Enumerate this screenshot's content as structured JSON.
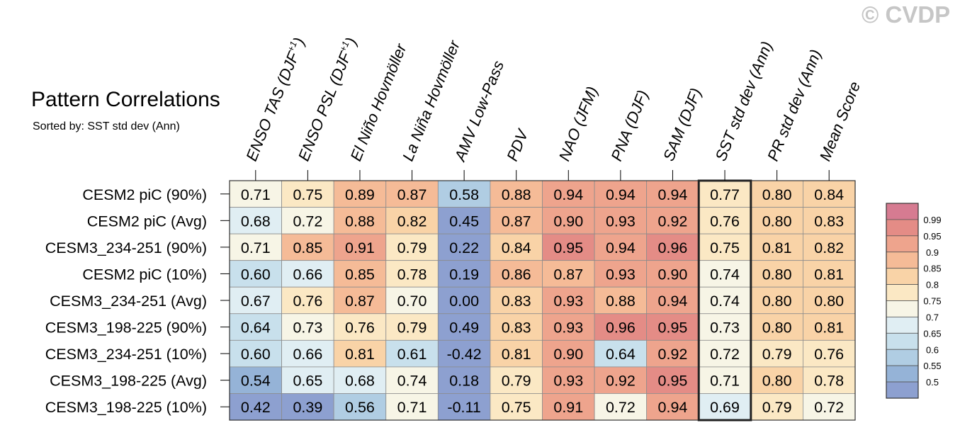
{
  "title": "Pattern Correlations",
  "subtitle": "Sorted by: SST std dev (Ann)",
  "watermark": "© CVDP",
  "chart_data": {
    "type": "heatmap",
    "title": "Pattern Correlations",
    "subtitle": "Sorted by: SST std dev (Ann)",
    "columns": [
      "ENSO TAS (DJF+1)",
      "ENSO PSL (DJF+1)",
      "El Niño Hovmöller",
      "La Niña Hovmöller",
      "AMV Low-Pass",
      "PDV",
      "NAO (JFM)",
      "PNA (DJF)",
      "SAM (DJF)",
      "SST std dev (Ann)",
      "PR std dev (Ann)",
      "Mean Score"
    ],
    "column_label_parts": [
      {
        "text": "ENSO TAS (DJF",
        "sup": "+1",
        "after": ")"
      },
      {
        "text": "ENSO PSL (DJF",
        "sup": "+1",
        "after": ")"
      },
      {
        "text": "El Niño Hovmöller"
      },
      {
        "text": "La Niña Hovmöller"
      },
      {
        "text": "AMV Low-Pass"
      },
      {
        "text": "PDV"
      },
      {
        "text": "NAO (JFM)"
      },
      {
        "text": "PNA (DJF)"
      },
      {
        "text": "SAM (DJF)"
      },
      {
        "text": "SST std dev (Ann)"
      },
      {
        "text": "PR std dev (Ann)"
      },
      {
        "text": "Mean Score"
      }
    ],
    "rows": [
      "CESM2 piC (90%)",
      "CESM2 piC (Avg)",
      "CESM3_234-251 (90%)",
      "CESM2 piC (10%)",
      "CESM3_234-251 (Avg)",
      "CESM3_198-225 (90%)",
      "CESM3_234-251 (10%)",
      "CESM3_198-225 (Avg)",
      "CESM3_198-225 (10%)"
    ],
    "values": [
      [
        "0.71",
        "0.75",
        "0.89",
        "0.87",
        "0.58",
        "0.88",
        "0.94",
        "0.94",
        "0.94",
        "0.77",
        "0.80",
        "0.84"
      ],
      [
        "0.68",
        "0.72",
        "0.88",
        "0.82",
        "0.45",
        "0.87",
        "0.90",
        "0.93",
        "0.92",
        "0.76",
        "0.80",
        "0.83"
      ],
      [
        "0.71",
        "0.85",
        "0.91",
        "0.79",
        "0.22",
        "0.84",
        "0.95",
        "0.94",
        "0.96",
        "0.75",
        "0.81",
        "0.82"
      ],
      [
        "0.60",
        "0.66",
        "0.85",
        "0.78",
        "0.19",
        "0.86",
        "0.87",
        "0.93",
        "0.90",
        "0.74",
        "0.80",
        "0.81"
      ],
      [
        "0.67",
        "0.76",
        "0.87",
        "0.70",
        "0.00",
        "0.83",
        "0.93",
        "0.88",
        "0.94",
        "0.74",
        "0.80",
        "0.80"
      ],
      [
        "0.64",
        "0.73",
        "0.76",
        "0.79",
        "0.49",
        "0.83",
        "0.93",
        "0.96",
        "0.95",
        "0.73",
        "0.80",
        "0.81"
      ],
      [
        "0.60",
        "0.66",
        "0.81",
        "0.61",
        "-0.42",
        "0.81",
        "0.90",
        "0.64",
        "0.92",
        "0.72",
        "0.79",
        "0.76"
      ],
      [
        "0.54",
        "0.65",
        "0.68",
        "0.74",
        "0.18",
        "0.79",
        "0.93",
        "0.92",
        "0.95",
        "0.71",
        "0.80",
        "0.78"
      ],
      [
        "0.42",
        "0.39",
        "0.56",
        "0.71",
        "-0.11",
        "0.75",
        "0.91",
        "0.72",
        "0.94",
        "0.69",
        "0.79",
        "0.72"
      ]
    ],
    "highlighted_column": "SST std dev (Ann)",
    "colorbar": {
      "labels": [
        "0.99",
        "0.95",
        "0.9",
        "0.85",
        "0.8",
        "0.75",
        "0.7",
        "0.65",
        "0.6",
        "0.55",
        "0.5"
      ],
      "bins": [
        {
          "lo": 0.99,
          "hi": 1.0,
          "color": "#d67b91"
        },
        {
          "lo": 0.95,
          "hi": 0.99,
          "color": "#e48c86"
        },
        {
          "lo": 0.9,
          "hi": 0.95,
          "color": "#eea48d"
        },
        {
          "lo": 0.85,
          "hi": 0.9,
          "color": "#f5bb97"
        },
        {
          "lo": 0.8,
          "hi": 0.85,
          "color": "#f9d3a7"
        },
        {
          "lo": 0.75,
          "hi": 0.8,
          "color": "#fbe8c4"
        },
        {
          "lo": 0.7,
          "hi": 0.75,
          "color": "#f7f5e6"
        },
        {
          "lo": 0.65,
          "hi": 0.7,
          "color": "#e0eef3"
        },
        {
          "lo": 0.6,
          "hi": 0.65,
          "color": "#c8e0ec"
        },
        {
          "lo": 0.55,
          "hi": 0.6,
          "color": "#b0cde3"
        },
        {
          "lo": 0.5,
          "hi": 0.55,
          "color": "#95b3d7"
        },
        {
          "lo": -1.0,
          "hi": 0.5,
          "color": "#8da0d0"
        }
      ]
    }
  }
}
